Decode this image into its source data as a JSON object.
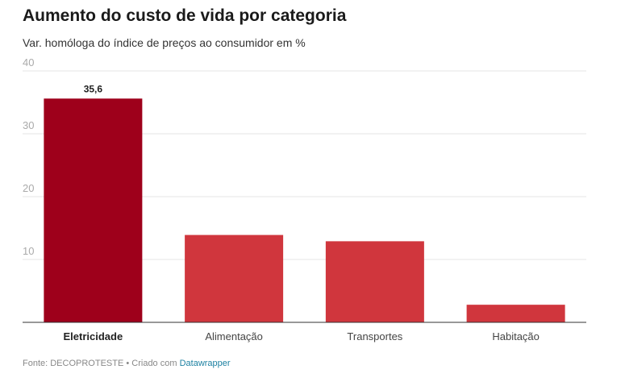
{
  "header": {
    "title": "Aumento do custo de vida por categoria",
    "subtitle": "Var. homóloga do índice de preços ao consumidor em %"
  },
  "chart_data": {
    "type": "bar",
    "title": "Aumento do custo de vida por categoria",
    "subtitle": "Var. homóloga do índice de preços ao consumidor em %",
    "categories": [
      "Eletricidade",
      "Alimentação",
      "Transportes",
      "Habitação"
    ],
    "values": [
      35.6,
      13.9,
      12.9,
      2.8
    ],
    "value_labels": [
      "35,6",
      "",
      "",
      ""
    ],
    "highlight_index": 0,
    "xlabel": "",
    "ylabel": "",
    "ylim": [
      0,
      40
    ],
    "yticks": [
      10,
      20,
      30,
      40
    ],
    "grid": true,
    "colors": {
      "highlight": "#9e001b",
      "default": "#d0363d",
      "grid": "#e6e6e6",
      "axis": "#333333"
    }
  },
  "footer": {
    "source": "Fonte: DECOPROTESTE • Criado com ",
    "tool": "Datawrapper"
  }
}
